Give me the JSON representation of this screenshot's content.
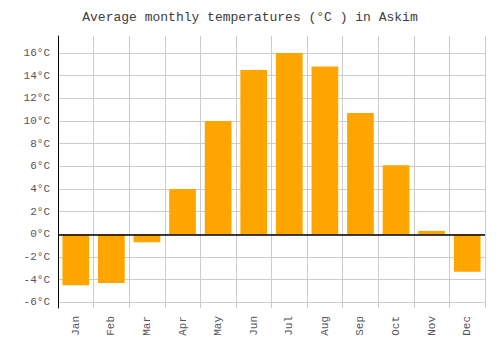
{
  "chart_data": {
    "type": "bar",
    "title": "Average monthly temperatures (°C ) in Askim",
    "categories": [
      "Jan",
      "Feb",
      "Mar",
      "Apr",
      "May",
      "Jun",
      "Jul",
      "Aug",
      "Sep",
      "Oct",
      "Nov",
      "Dec"
    ],
    "values": [
      -4.5,
      -4.3,
      -0.7,
      4.0,
      10.0,
      14.5,
      16.0,
      14.8,
      10.7,
      6.1,
      0.3,
      -3.3
    ],
    "color": "#FFA500",
    "ylim": [
      -6.5,
      17.5
    ],
    "yticks": [
      {
        "value": -6,
        "label": "-6°C"
      },
      {
        "value": -4,
        "label": "-4°C"
      },
      {
        "value": -2,
        "label": "-2°C"
      },
      {
        "value": 0,
        "label": "0°C"
      },
      {
        "value": 2,
        "label": "2°C"
      },
      {
        "value": 4,
        "label": "4°C"
      },
      {
        "value": 6,
        "label": "6°C"
      },
      {
        "value": 8,
        "label": "8°C"
      },
      {
        "value": 10,
        "label": "10°C"
      },
      {
        "value": 12,
        "label": "12°C"
      },
      {
        "value": 14,
        "label": "14°C"
      },
      {
        "value": 16,
        "label": "16°C"
      }
    ],
    "grid": true
  }
}
